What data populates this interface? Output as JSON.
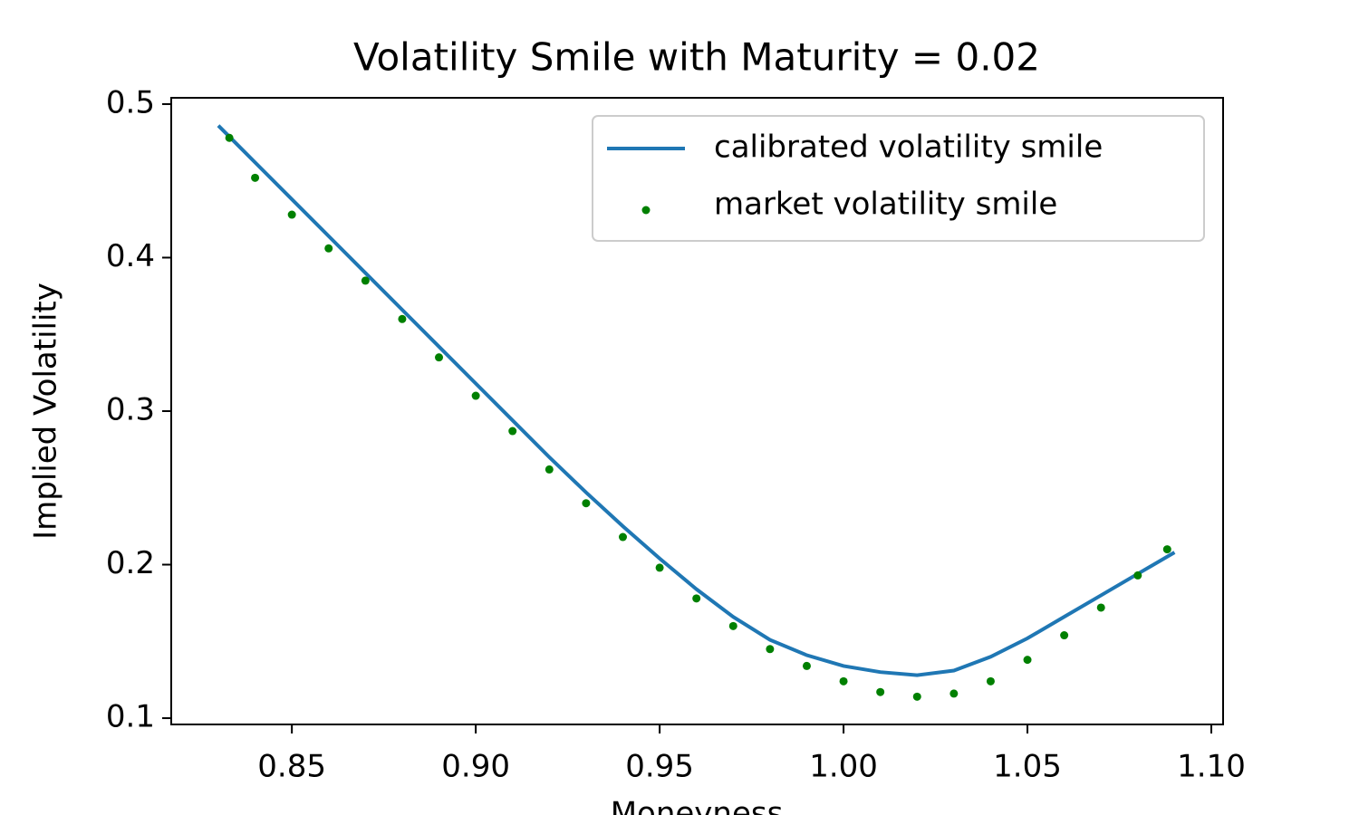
{
  "chart_data": {
    "type": "line",
    "title": "Volatility Smile with Maturity = 0.02",
    "x_label": "Moneyness",
    "y_label": "Implied Volatility",
    "xlim": [
      0.8172,
      1.1032
    ],
    "ylim": [
      0.0959,
      0.5041
    ],
    "xticks": [
      0.85,
      {
        "value": 0.9,
        "label": "0.90"
      },
      {
        "value": 0.95,
        "label": "0.95"
      },
      {
        "value": 1.0,
        "label": "1.00"
      },
      1.05,
      {
        "value": 1.1,
        "label": "1.10"
      }
    ],
    "yticks": [
      0.1,
      0.2,
      0.3,
      0.4,
      0.5
    ],
    "legend": "upper right",
    "series": [
      {
        "name": "calibrated volatility smile",
        "color": "#1f77b4",
        "kind": "line",
        "x": [
          0.83,
          0.84,
          0.85,
          0.86,
          0.87,
          0.88,
          0.89,
          0.9,
          0.91,
          0.92,
          0.93,
          0.94,
          0.95,
          0.96,
          0.97,
          0.98,
          0.99,
          1.0,
          1.01,
          1.02,
          1.03,
          1.04,
          1.05,
          1.06,
          1.07,
          1.08,
          1.09
        ],
        "values": [
          0.486,
          0.462,
          0.438,
          0.414,
          0.39,
          0.366,
          0.342,
          0.318,
          0.294,
          0.27,
          0.247,
          0.225,
          0.204,
          0.184,
          0.166,
          0.151,
          0.141,
          0.134,
          0.13,
          0.128,
          0.131,
          0.14,
          0.152,
          0.166,
          0.18,
          0.194,
          0.208
        ]
      },
      {
        "name": "market volatility smile",
        "color": "#008000",
        "kind": "scatter",
        "x": [
          0.833,
          0.84,
          0.85,
          0.86,
          0.87,
          0.88,
          0.89,
          0.9,
          0.91,
          0.92,
          0.93,
          0.94,
          0.95,
          0.96,
          0.97,
          0.98,
          0.99,
          1.0,
          1.01,
          1.02,
          1.03,
          1.04,
          1.05,
          1.06,
          1.07,
          1.08,
          1.088
        ],
        "values": [
          0.478,
          0.452,
          0.428,
          0.406,
          0.385,
          0.36,
          0.335,
          0.31,
          0.287,
          0.262,
          0.24,
          0.218,
          0.198,
          0.178,
          0.16,
          0.145,
          0.134,
          0.124,
          0.117,
          0.114,
          0.116,
          0.124,
          0.138,
          0.154,
          0.172,
          0.193,
          0.21
        ]
      }
    ]
  }
}
